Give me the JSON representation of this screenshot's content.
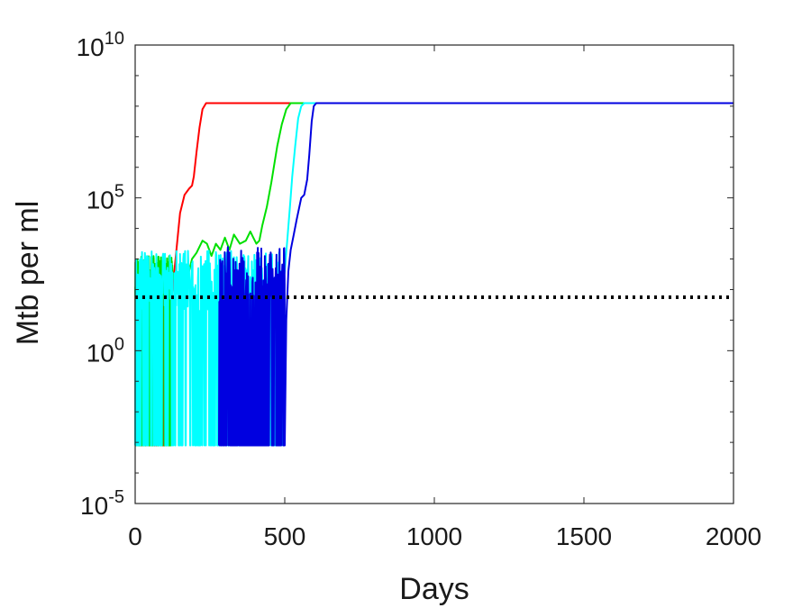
{
  "chart_data": {
    "type": "line",
    "title": "",
    "xlabel": "Days",
    "ylabel": "Mtb per ml",
    "xlim": [
      0,
      2000
    ],
    "ylim_log10": [
      -5,
      10
    ],
    "yscale": "log",
    "grid": false,
    "legend": "none",
    "x_ticks": [
      {
        "value": 0,
        "label": "0"
      },
      {
        "value": 500,
        "label": "500"
      },
      {
        "value": 1000,
        "label": "1000"
      },
      {
        "value": 1500,
        "label": "1500"
      },
      {
        "value": 2000,
        "label": "2000"
      }
    ],
    "y_ticks": [
      {
        "exp": -5,
        "base": "10",
        "sup": "-5"
      },
      {
        "exp": 0,
        "base": "10",
        "sup": "0"
      },
      {
        "exp": 5,
        "base": "10",
        "sup": "5"
      },
      {
        "exp": 10,
        "base": "10",
        "sup": "10"
      }
    ],
    "threshold": {
      "log10_y": 1.75,
      "color": "#000000",
      "style": "dotted"
    },
    "floor_log10": -3.1,
    "series": [
      {
        "color": "#ff0000",
        "noise": {
          "x0": 0,
          "x1": 112,
          "base": 1.6,
          "amp": 0.5,
          "seed": 3,
          "dropProb": 0.35,
          "density": 0.6
        },
        "curve": [
          [
            112,
            1.0
          ],
          [
            125,
            2.0
          ],
          [
            135,
            3.0
          ],
          [
            150,
            4.5
          ],
          [
            165,
            5.1
          ],
          [
            180,
            5.3
          ],
          [
            190,
            5.4
          ],
          [
            196,
            5.7
          ],
          [
            205,
            6.5
          ],
          [
            215,
            7.3
          ],
          [
            225,
            7.9
          ],
          [
            237,
            8.1
          ],
          [
            250,
            8.1
          ],
          [
            2000,
            8.1
          ]
        ]
      },
      {
        "color": "#00e000",
        "noise": {
          "x0": 0,
          "x1": 125,
          "base": 2.4,
          "amp": 0.7,
          "seed": 11,
          "dropProb": 0.12,
          "density": 0.5
        },
        "curve": [
          [
            125,
            2.5
          ],
          [
            140,
            2.0
          ],
          [
            155,
            2.7
          ],
          [
            175,
            2.4
          ],
          [
            190,
            3.0
          ],
          [
            205,
            3.2
          ],
          [
            225,
            3.6
          ],
          [
            240,
            3.5
          ],
          [
            255,
            3.1
          ],
          [
            270,
            3.5
          ],
          [
            285,
            3.3
          ],
          [
            300,
            3.7
          ],
          [
            315,
            3.3
          ],
          [
            330,
            3.8
          ],
          [
            350,
            3.5
          ],
          [
            370,
            3.6
          ],
          [
            385,
            3.9
          ],
          [
            395,
            3.7
          ],
          [
            405,
            3.5
          ],
          [
            415,
            3.6
          ],
          [
            425,
            4.1
          ],
          [
            440,
            4.7
          ],
          [
            455,
            5.5
          ],
          [
            465,
            6.1
          ],
          [
            475,
            6.7
          ],
          [
            490,
            7.4
          ],
          [
            505,
            7.9
          ],
          [
            520,
            8.1
          ],
          [
            2000,
            8.1
          ]
        ]
      },
      {
        "color": "#00ffff",
        "noise": {
          "x0": 0,
          "x1": 490,
          "base": 2.3,
          "amp": 1.0,
          "seed": 29,
          "dropProb": 0.28,
          "density": 1.2
        },
        "curve": [
          [
            210,
            2.3
          ],
          [
            230,
            3.5
          ],
          [
            240,
            4.0
          ],
          [
            245,
            4.1
          ],
          [
            255,
            3.7
          ],
          [
            265,
            3.4
          ],
          [
            285,
            3.0
          ],
          [
            300,
            2.7
          ],
          [
            315,
            2.6
          ],
          [
            330,
            2.5
          ],
          [
            350,
            2.3
          ],
          [
            375,
            2.9
          ],
          [
            390,
            2.6
          ],
          [
            410,
            2.4
          ],
          [
            435,
            2.6
          ],
          [
            460,
            2.4
          ],
          [
            475,
            2.3
          ],
          [
            490,
            2.0
          ],
          [
            500,
            2.6
          ],
          [
            510,
            3.8
          ],
          [
            518,
            4.8
          ],
          [
            525,
            5.7
          ],
          [
            535,
            6.7
          ],
          [
            545,
            7.6
          ],
          [
            555,
            8.0
          ],
          [
            565,
            8.1
          ],
          [
            2000,
            8.1
          ]
        ]
      },
      {
        "color": "#0000e0",
        "noise": {
          "x0": 280,
          "x1": 500,
          "base": 2.5,
          "amp": 0.9,
          "seed": 47,
          "dropProb": 0.45,
          "density": 1.3
        },
        "curve": [
          [
            300,
            2.6
          ],
          [
            320,
            2.9
          ],
          [
            340,
            3.2
          ],
          [
            355,
            3.0
          ],
          [
            370,
            2.8
          ],
          [
            385,
            2.5
          ],
          [
            400,
            2.7
          ],
          [
            420,
            2.3
          ],
          [
            440,
            2.5
          ],
          [
            460,
            2.2
          ],
          [
            480,
            2.4
          ],
          [
            495,
            2.0
          ],
          [
            500,
            -3.1
          ],
          [
            505,
            1.0
          ],
          [
            512,
            2.6
          ],
          [
            520,
            3.3
          ],
          [
            530,
            3.8
          ],
          [
            540,
            4.3
          ],
          [
            555,
            5.0
          ],
          [
            565,
            5.1
          ],
          [
            575,
            5.6
          ],
          [
            582,
            6.4
          ],
          [
            590,
            7.5
          ],
          [
            597,
            8.0
          ],
          [
            605,
            8.1
          ],
          [
            2000,
            8.1
          ]
        ]
      }
    ]
  }
}
